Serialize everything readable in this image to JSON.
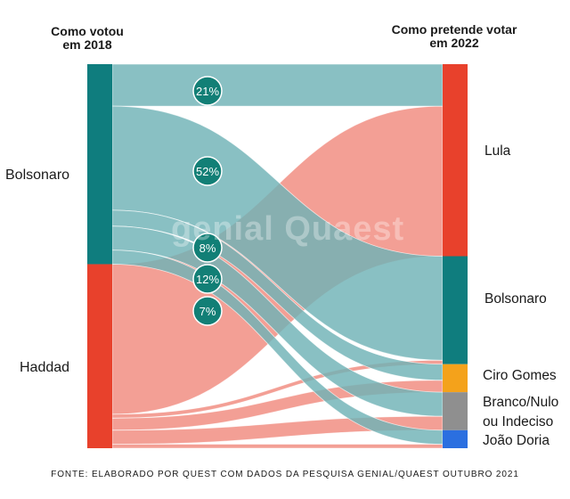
{
  "chart_data": {
    "type": "sankey",
    "header_left": [
      "Como votou",
      "em 2018"
    ],
    "header_right": [
      "Como pretende votar",
      "em 2022"
    ],
    "sources": [
      {
        "name": "Bolsonaro",
        "color": "#0f7d7e",
        "flow_color": "#6fb2b6"
      },
      {
        "name": "Haddad",
        "color": "#e8412c",
        "flow_color": "#f08a7e"
      }
    ],
    "targets": [
      {
        "name": "Lula",
        "color": "#e8412c"
      },
      {
        "name": "Bolsonaro",
        "color": "#0f7d7e"
      },
      {
        "name": "Ciro Gomes",
        "color": "#f4a21b"
      },
      {
        "name": "Branco/Nulo ou Indeciso",
        "color": "#8f8f8f"
      },
      {
        "name": "João Doria",
        "color": "#2b6fe0"
      }
    ],
    "flows": [
      {
        "from": "Bolsonaro",
        "to": "Lula",
        "value": 21,
        "label": "21%"
      },
      {
        "from": "Bolsonaro",
        "to": "Bolsonaro",
        "value": 52,
        "label": "52%"
      },
      {
        "from": "Bolsonaro",
        "to": "Ciro Gomes",
        "value": 8,
        "label": "8%"
      },
      {
        "from": "Bolsonaro",
        "to": "Branco/Nulo ou Indeciso",
        "value": 12,
        "label": "12%"
      },
      {
        "from": "Bolsonaro",
        "to": "João Doria",
        "value": 7,
        "label": "7%"
      },
      {
        "from": "Haddad",
        "to": "Lula",
        "value": 75
      },
      {
        "from": "Haddad",
        "to": "Bolsonaro",
        "value": 2
      },
      {
        "from": "Haddad",
        "to": "Ciro Gomes",
        "value": 6
      },
      {
        "from": "Haddad",
        "to": "Branco/Nulo ou Indeciso",
        "value": 7
      },
      {
        "from": "Haddad",
        "to": "João Doria",
        "value": 2
      }
    ]
  },
  "watermark": "genial Quaest",
  "source": "FONTE: ELABORADO POR QUEST COM DADOS DA PESQUISA GENIAL/QUAEST OUTUBRO 2021"
}
